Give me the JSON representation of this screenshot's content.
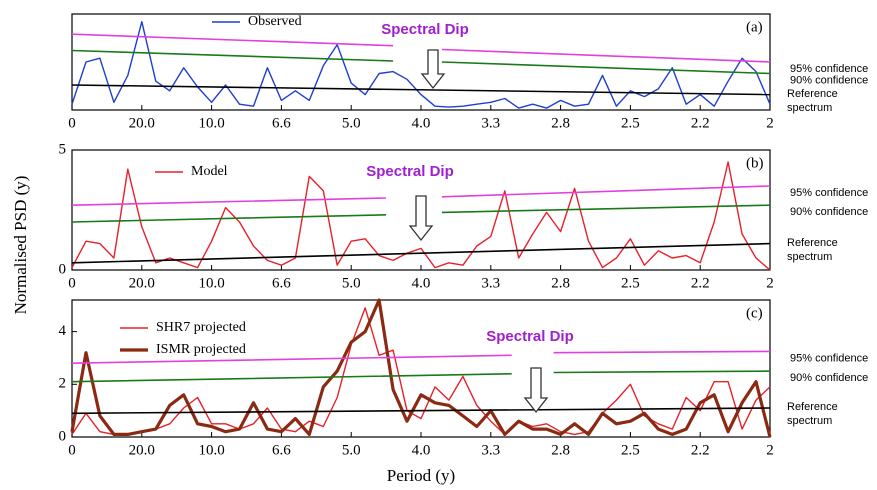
{
  "chart_data": [
    {
      "type": "line",
      "panel_label": "(a)",
      "annotation": "Spectral Dip",
      "xlim": [
        0,
        10
      ],
      "ylim": [
        0,
        5
      ],
      "xticks": [
        0,
        {
          "value": 1,
          "label": "20.0"
        },
        {
          "value": 2,
          "label": "10.0"
        },
        {
          "value": 3,
          "label": "6.6"
        },
        {
          "value": 4,
          "label": "5.0"
        },
        {
          "value": 5,
          "label": "4.0"
        },
        {
          "value": 6,
          "label": "3.3"
        },
        {
          "value": 7,
          "label": "2.8"
        },
        {
          "value": 8,
          "label": "2.5"
        },
        {
          "value": 9,
          "label": "2.2"
        },
        {
          "value": 10,
          "label": "2"
        }
      ],
      "x": [
        0,
        0.2,
        0.4,
        0.6,
        0.8,
        1,
        1.2,
        1.4,
        1.6,
        1.8,
        2,
        2.2,
        2.4,
        2.6,
        2.8,
        3,
        3.2,
        3.4,
        3.6,
        3.8,
        4,
        4.2,
        4.4,
        4.6,
        4.8,
        5,
        5.2,
        5.4,
        5.6,
        5.8,
        6,
        6.2,
        6.4,
        6.6,
        6.8,
        7,
        7.2,
        7.4,
        7.6,
        7.8,
        8,
        8.2,
        8.4,
        8.6,
        8.8,
        9,
        9.2,
        9.4,
        9.6,
        9.8,
        10
      ],
      "series": [
        {
          "name": "Observed",
          "color": "#1f3fd0",
          "values": [
            0.3,
            2.5,
            2.7,
            0.4,
            1.8,
            4.6,
            1.5,
            1.0,
            2.2,
            1.2,
            0.4,
            1.3,
            0.3,
            0.2,
            2.2,
            0.5,
            1.0,
            0.5,
            2.3,
            3.4,
            1.4,
            0.8,
            1.9,
            2.0,
            1.6,
            0.8,
            0.2,
            0.15,
            0.2,
            0.3,
            0.4,
            0.6,
            0.1,
            0.3,
            0.1,
            0.5,
            0.2,
            0.3,
            1.8,
            0.2,
            1.0,
            0.7,
            1.1,
            2.2,
            0.3,
            0.8,
            0.2,
            1.5,
            2.7,
            2.0,
            0.3
          ]
        },
        {
          "name": "95% confidence",
          "color": "#e040e0",
          "x": [
            0,
            4.6,
            4.8,
            5.3,
            10
          ],
          "values": [
            3.95,
            3.35,
            null,
            3.15,
            2.5
          ]
        },
        {
          "name": "90% confidence",
          "color": "#1a7a1a",
          "x": [
            0,
            4.6,
            4.8,
            5.3,
            10
          ],
          "values": [
            3.1,
            2.55,
            null,
            2.5,
            1.9
          ]
        },
        {
          "name": "Reference spectrum",
          "color": "#000000",
          "x": [
            0,
            10
          ],
          "values": [
            1.3,
            0.8
          ]
        }
      ]
    },
    {
      "type": "line",
      "panel_label": "(b)",
      "annotation": "Spectral Dip",
      "ylabel": "Normalised PSD (y)",
      "xlim": [
        0,
        10
      ],
      "ylim": [
        0,
        5
      ],
      "yticks": [
        0,
        5
      ],
      "xticks": [
        0,
        {
          "value": 1,
          "label": "20.0"
        },
        {
          "value": 2,
          "label": "10.0"
        },
        {
          "value": 3,
          "label": "6.6"
        },
        {
          "value": 4,
          "label": "5.0"
        },
        {
          "value": 5,
          "label": "4.0"
        },
        {
          "value": 6,
          "label": "3.3"
        },
        {
          "value": 7,
          "label": "2.8"
        },
        {
          "value": 8,
          "label": "2.5"
        },
        {
          "value": 9,
          "label": "2.2"
        },
        {
          "value": 10,
          "label": "2"
        }
      ],
      "x": [
        0,
        0.2,
        0.4,
        0.6,
        0.8,
        1,
        1.2,
        1.4,
        1.6,
        1.8,
        2,
        2.2,
        2.4,
        2.6,
        2.8,
        3,
        3.2,
        3.4,
        3.6,
        3.8,
        4,
        4.2,
        4.4,
        4.6,
        4.8,
        5,
        5.2,
        5.4,
        5.6,
        5.8,
        6,
        6.2,
        6.4,
        6.6,
        6.8,
        7,
        7.2,
        7.4,
        7.6,
        7.8,
        8,
        8.2,
        8.4,
        8.6,
        8.8,
        9,
        9.2,
        9.4,
        9.6,
        9.8,
        10
      ],
      "series": [
        {
          "name": "Model",
          "color": "#e8202a",
          "values": [
            0.1,
            1.2,
            1.1,
            0.5,
            4.2,
            1.8,
            0.3,
            0.5,
            0.3,
            0.1,
            1.2,
            2.6,
            2.0,
            1.0,
            0.4,
            0.2,
            0.5,
            3.9,
            3.3,
            0.2,
            1.2,
            1.3,
            0.6,
            0.4,
            0.7,
            0.9,
            0.1,
            0.3,
            0.2,
            1.0,
            1.4,
            3.3,
            0.5,
            1.5,
            2.4,
            1.6,
            3.4,
            1.2,
            0.1,
            0.5,
            1.3,
            0.2,
            0.8,
            0.5,
            0.6,
            0.3,
            2.0,
            4.5,
            1.5,
            0.5,
            0.0
          ]
        },
        {
          "name": "95% confidence",
          "color": "#e040e0",
          "x": [
            0,
            4.5,
            4.7,
            5.3,
            10
          ],
          "values": [
            2.7,
            3.0,
            null,
            3.05,
            3.5
          ]
        },
        {
          "name": "90% confidence",
          "color": "#1a7a1a",
          "x": [
            0,
            4.5,
            4.7,
            5.3,
            10
          ],
          "values": [
            2.0,
            2.3,
            null,
            2.4,
            2.7
          ]
        },
        {
          "name": "Reference spectrum",
          "color": "#000000",
          "x": [
            0,
            10
          ],
          "values": [
            0.3,
            1.1
          ]
        }
      ]
    },
    {
      "type": "line",
      "panel_label": "(c)",
      "annotation": "Spectral Dip",
      "xlabel": "Period (y)",
      "xlim": [
        0,
        10
      ],
      "ylim": [
        0,
        5.2
      ],
      "yticks": [
        0,
        2,
        4
      ],
      "xticks": [
        0,
        {
          "value": 1,
          "label": "20.0"
        },
        {
          "value": 2,
          "label": "10.0"
        },
        {
          "value": 3,
          "label": "6.6"
        },
        {
          "value": 4,
          "label": "5.0"
        },
        {
          "value": 5,
          "label": "4.0"
        },
        {
          "value": 6,
          "label": "3.3"
        },
        {
          "value": 7,
          "label": "2.8"
        },
        {
          "value": 8,
          "label": "2.5"
        },
        {
          "value": 9,
          "label": "2.2"
        },
        {
          "value": 10,
          "label": "2"
        }
      ],
      "x": [
        0,
        0.2,
        0.4,
        0.6,
        0.8,
        1,
        1.2,
        1.4,
        1.6,
        1.8,
        2,
        2.2,
        2.4,
        2.6,
        2.8,
        3,
        3.2,
        3.4,
        3.6,
        3.8,
        4,
        4.2,
        4.4,
        4.6,
        4.8,
        5,
        5.2,
        5.4,
        5.6,
        5.8,
        6,
        6.2,
        6.4,
        6.6,
        6.8,
        7,
        7.2,
        7.4,
        7.6,
        7.8,
        8,
        8.2,
        8.4,
        8.6,
        8.8,
        9,
        9.2,
        9.4,
        9.6,
        9.8,
        10
      ],
      "series": [
        {
          "name": "SHR7 projected",
          "color": "#e8202a",
          "values": [
            0.1,
            0.9,
            0.2,
            0.1,
            0.1,
            0.2,
            0.3,
            0.5,
            1.1,
            1.5,
            0.5,
            0.5,
            0.3,
            0.5,
            1.1,
            0.3,
            0.2,
            0.6,
            0.4,
            1.5,
            3.5,
            4.9,
            3.1,
            3.3,
            1.0,
            0.7,
            1.9,
            1.4,
            2.3,
            1.2,
            0.6,
            0.1,
            0.6,
            0.4,
            0.5,
            0.2,
            0.1,
            0.2,
            0.9,
            1.4,
            2.0,
            0.8,
            0.5,
            0.3,
            1.5,
            1.0,
            2.1,
            2.1,
            0.3,
            1.4,
            1.9
          ]
        },
        {
          "name": "ISMR projected",
          "color": "#8b2a12",
          "values": [
            0.2,
            3.2,
            0.8,
            0.1,
            0.1,
            0.2,
            0.3,
            1.2,
            1.6,
            0.5,
            0.4,
            0.2,
            0.3,
            1.3,
            0.3,
            0.2,
            0.7,
            0.1,
            1.9,
            2.5,
            3.6,
            4.0,
            5.2,
            1.8,
            0.6,
            1.6,
            1.3,
            1.2,
            0.8,
            0.4,
            1.0,
            0.1,
            0.6,
            0.3,
            0.3,
            0.1,
            0.5,
            0.1,
            0.9,
            0.5,
            0.6,
            0.9,
            0.3,
            0.1,
            0.3,
            1.3,
            1.6,
            0.2,
            1.3,
            2.1,
            0.0
          ]
        },
        {
          "name": "95% confidence",
          "color": "#e040e0",
          "x": [
            0,
            6.3,
            6.5,
            6.9,
            10
          ],
          "values": [
            2.8,
            3.1,
            null,
            3.2,
            3.25
          ]
        },
        {
          "name": "90% confidence",
          "color": "#1a7a1a",
          "x": [
            0,
            6.3,
            6.5,
            6.9,
            10
          ],
          "values": [
            2.1,
            2.4,
            null,
            2.45,
            2.5
          ]
        },
        {
          "name": "Reference spectrum",
          "color": "#000000",
          "x": [
            0,
            10
          ],
          "values": [
            0.9,
            1.1
          ]
        }
      ]
    }
  ]
}
